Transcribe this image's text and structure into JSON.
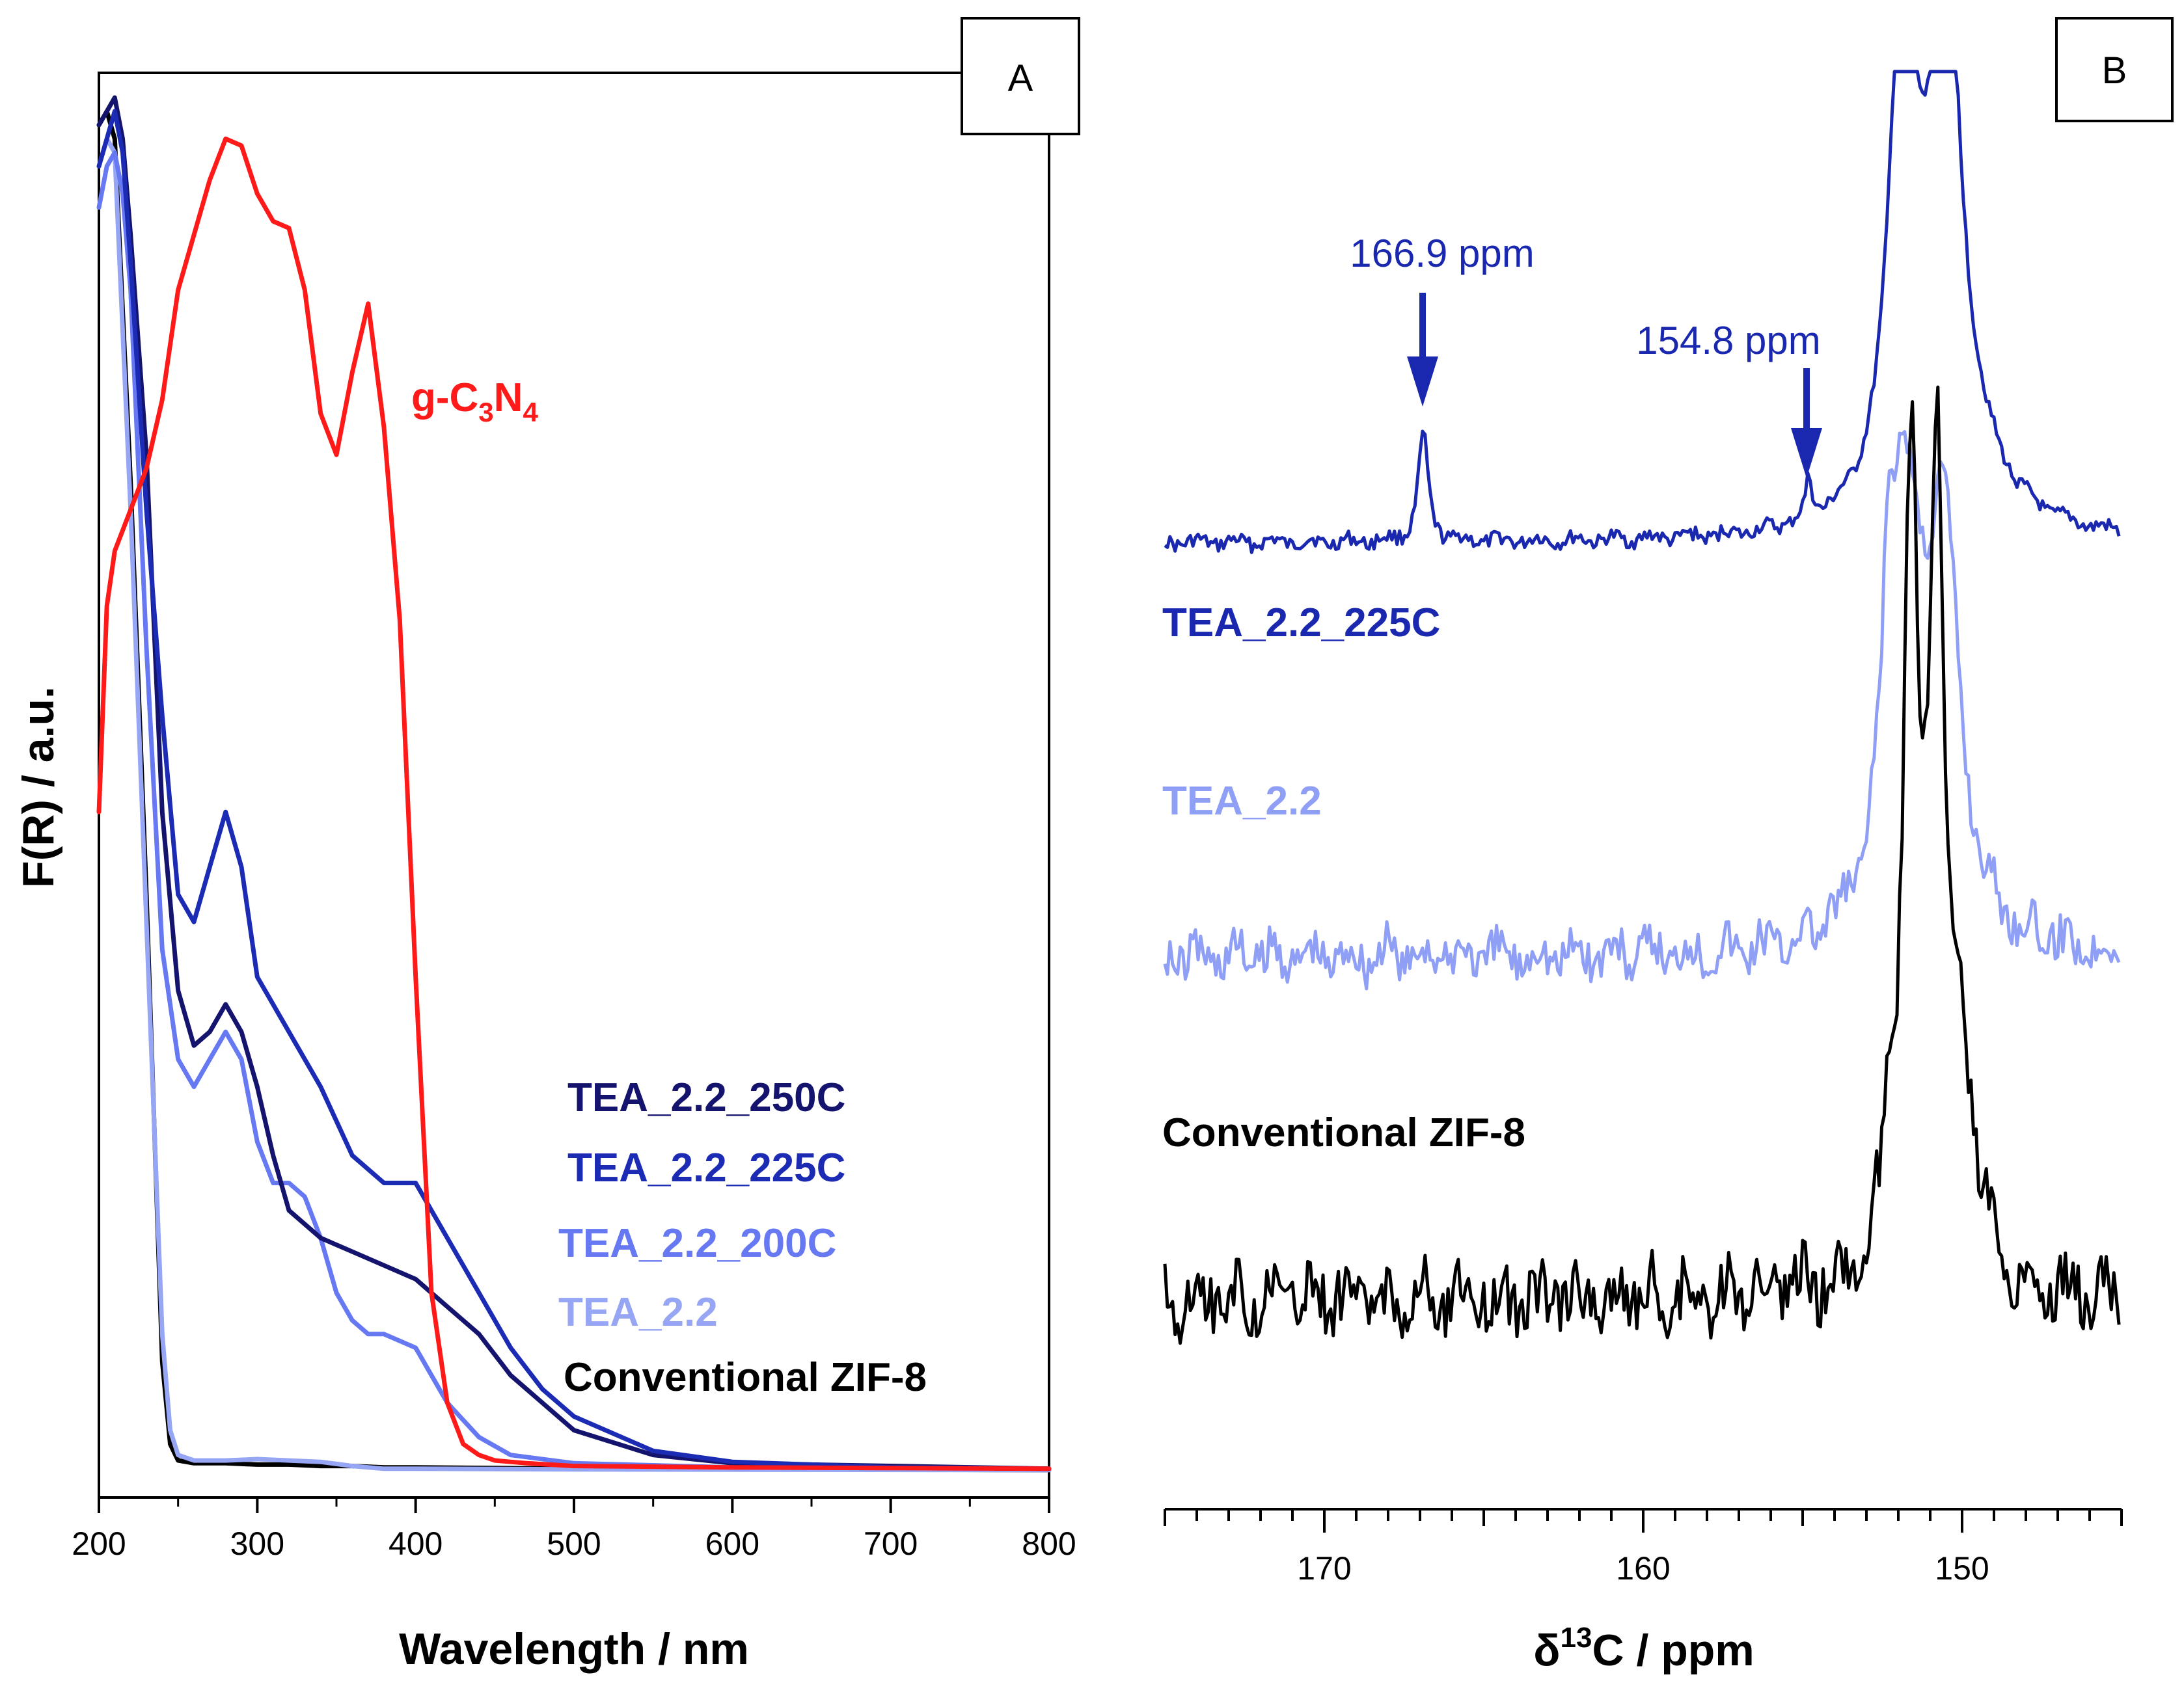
{
  "colors": {
    "black": "#000000",
    "red": "#ff1a1a",
    "dark_navy": "#14146e",
    "navy": "#1c2bb4",
    "blue": "#6679f2",
    "light_blue": "#97a6f4",
    "nmr_225c": "#1a28b0",
    "nmr_tea": "#8f9ff5"
  },
  "chart_data": [
    {
      "panel": "A",
      "type": "line",
      "xlabel": "Wavelength / nm",
      "ylabel": "F(R) / a.u.",
      "xlim": [
        200,
        800
      ],
      "ylim": [
        0,
        1
      ],
      "xticks": [
        "200",
        "300",
        "400",
        "500",
        "600",
        "700",
        "800"
      ],
      "y_tick_labels_shown": false,
      "series": [
        {
          "name": "g-C3N4",
          "color": "#ff1a1a",
          "x": [
            200,
            205,
            210,
            220,
            230,
            240,
            250,
            260,
            270,
            280,
            290,
            300,
            310,
            320,
            330,
            340,
            350,
            360,
            370,
            380,
            390,
            400,
            410,
            420,
            430,
            440,
            450,
            470,
            500,
            600,
            800
          ],
          "y": [
            0.48,
            0.63,
            0.67,
            0.7,
            0.73,
            0.78,
            0.86,
            0.9,
            0.94,
            0.97,
            0.965,
            0.93,
            0.91,
            0.905,
            0.86,
            0.77,
            0.74,
            0.8,
            0.85,
            0.76,
            0.62,
            0.36,
            0.13,
            0.05,
            0.02,
            0.012,
            0.008,
            0.006,
            0.004,
            0.003,
            0.002
          ],
          "label": "g-C",
          "label_sub1": "3",
          "label_mid": "N",
          "label_sub2": "4"
        },
        {
          "name": "TEA_2.2_250C",
          "color": "#14146e",
          "x": [
            200,
            205,
            210,
            215,
            220,
            230,
            240,
            250,
            260,
            270,
            280,
            290,
            300,
            310,
            320,
            340,
            360,
            380,
            400,
            420,
            440,
            460,
            480,
            500,
            550,
            600,
            800
          ],
          "y": [
            0.98,
            0.99,
            1.0,
            0.97,
            0.9,
            0.74,
            0.48,
            0.35,
            0.31,
            0.32,
            0.34,
            0.32,
            0.28,
            0.23,
            0.19,
            0.17,
            0.16,
            0.15,
            0.14,
            0.12,
            0.1,
            0.07,
            0.05,
            0.03,
            0.012,
            0.006,
            0.002
          ],
          "label": "TEA_2.2_250C"
        },
        {
          "name": "TEA_2.2_225C",
          "color": "#1c2bb4",
          "x": [
            200,
            205,
            210,
            215,
            220,
            230,
            240,
            250,
            260,
            270,
            280,
            290,
            300,
            320,
            340,
            360,
            380,
            400,
            420,
            440,
            460,
            480,
            500,
            550,
            600,
            700,
            800
          ],
          "y": [
            0.95,
            0.97,
            0.99,
            0.96,
            0.88,
            0.7,
            0.55,
            0.42,
            0.4,
            0.44,
            0.48,
            0.44,
            0.36,
            0.32,
            0.28,
            0.23,
            0.21,
            0.21,
            0.17,
            0.13,
            0.09,
            0.06,
            0.04,
            0.015,
            0.007,
            0.003,
            0.002
          ],
          "label": "TEA_2.2_225C"
        },
        {
          "name": "TEA_2.2_200C",
          "color": "#6679f2",
          "x": [
            200,
            205,
            210,
            215,
            220,
            230,
            240,
            250,
            260,
            270,
            280,
            290,
            300,
            310,
            320,
            330,
            340,
            350,
            360,
            370,
            380,
            400,
            420,
            440,
            460,
            500,
            600,
            800
          ],
          "y": [
            0.92,
            0.95,
            0.96,
            0.93,
            0.86,
            0.6,
            0.38,
            0.3,
            0.28,
            0.3,
            0.32,
            0.3,
            0.24,
            0.21,
            0.21,
            0.2,
            0.17,
            0.13,
            0.11,
            0.1,
            0.1,
            0.09,
            0.05,
            0.025,
            0.012,
            0.006,
            0.003,
            0.002
          ],
          "label": "TEA_2.2_200C"
        },
        {
          "name": "TEA_2.2",
          "color": "#97a6f4",
          "x": [
            200,
            205,
            210,
            220,
            230,
            240,
            245,
            250,
            260,
            280,
            300,
            320,
            340,
            360,
            380,
            400,
            500,
            800
          ],
          "y": [
            0.95,
            0.97,
            0.96,
            0.7,
            0.4,
            0.1,
            0.03,
            0.012,
            0.008,
            0.008,
            0.009,
            0.008,
            0.007,
            0.004,
            0.002,
            0.002,
            0.0015,
            0.001
          ],
          "label": "TEA_2.2"
        },
        {
          "name": "Conventional ZIF-8",
          "color": "#000000",
          "x": [
            200,
            205,
            210,
            220,
            230,
            240,
            245,
            250,
            260,
            280,
            300,
            320,
            340,
            360,
            380,
            400,
            500,
            800
          ],
          "y": [
            0.98,
            0.99,
            0.97,
            0.72,
            0.42,
            0.08,
            0.02,
            0.008,
            0.006,
            0.006,
            0.005,
            0.005,
            0.004,
            0.004,
            0.003,
            0.003,
            0.002,
            0.001
          ],
          "label": "Conventional ZIF-8"
        }
      ]
    },
    {
      "panel": "B",
      "type": "line",
      "xlabel_prefix": "δ",
      "xlabel_sup": "13",
      "xlabel_suffix": "C / ppm",
      "xlim": [
        175,
        145
      ],
      "xticks": [
        "170",
        "160",
        "150"
      ],
      "annotations": [
        {
          "text": "166.9 ppm",
          "x": 166.9
        },
        {
          "text": "154.8 ppm",
          "x": 154.8
        }
      ],
      "series": [
        {
          "name": "TEA_2.2_225C",
          "color": "#1a28b0",
          "label": "TEA_2.2_225C",
          "peaks": [
            166.9,
            154.8,
            151.2
          ]
        },
        {
          "name": "TEA_2.2",
          "color": "#8f9ff5",
          "label": "TEA_2.2",
          "peaks": [
            151.2
          ]
        },
        {
          "name": "Conventional ZIF-8",
          "color": "#000000",
          "label": "Conventional ZIF-8",
          "peaks": [
            151.2
          ]
        }
      ]
    }
  ]
}
